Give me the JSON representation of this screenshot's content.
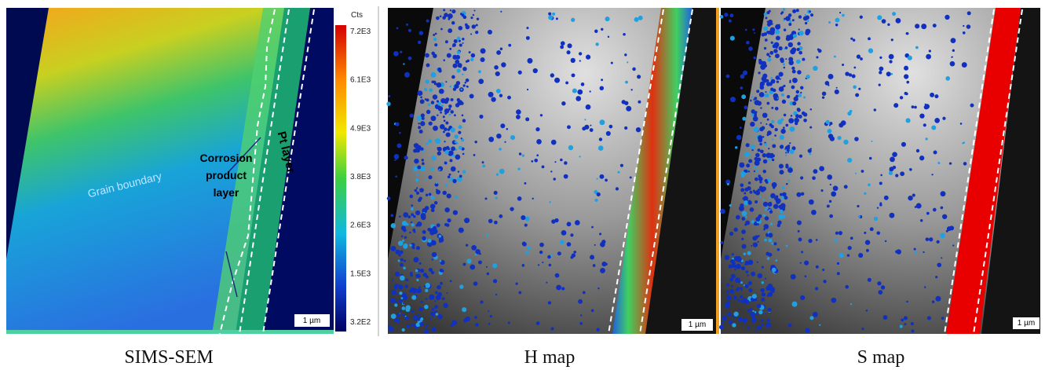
{
  "panels": [
    {
      "caption": "SIMS-SEM",
      "scale_bar": "1 µm"
    },
    {
      "caption": "H map",
      "scale_bar": "1 µm"
    },
    {
      "caption": "S map",
      "scale_bar": "1 µm"
    }
  ],
  "colorbar": {
    "unit": "Cts",
    "ticks": [
      "7.2E3",
      "6.1E3",
      "4.9E3",
      "3.8E3",
      "2.6E3",
      "1.5E3",
      "3.2E2"
    ]
  },
  "annotations": {
    "grain_boundary": "Grain boundary",
    "corrosion": [
      "Corrosion",
      "product",
      "layer"
    ],
    "pt_layer": "Pt layer"
  }
}
